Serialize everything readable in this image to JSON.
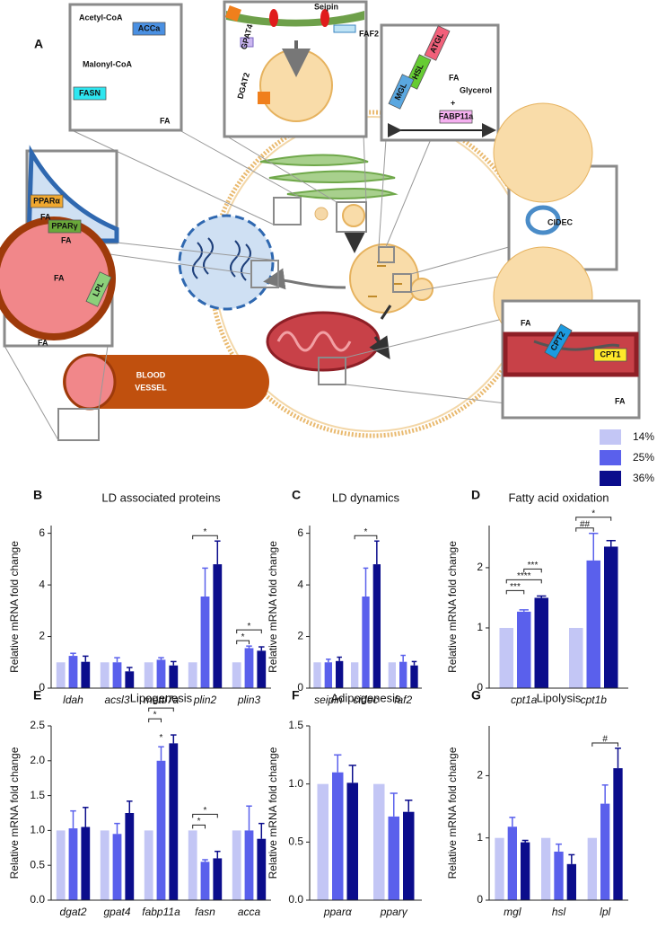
{
  "panel_a": {
    "label": "A",
    "labels": [
      "Acetyl-CoA",
      "ACCa",
      "Malonyl-CoA",
      "FASN",
      "FA",
      "Seipin",
      "FAF2",
      "GPAT4",
      "DGAT2",
      "ATGL",
      "HSL",
      "MGL",
      "FA",
      "Glycerol",
      "+",
      "FABP11a",
      "PPARα",
      "FA",
      "PPARγ",
      "FA",
      "CIDEC",
      "FA",
      "LPL",
      "FA",
      "BLOOD",
      "VESSEL",
      "FA",
      "CPT2",
      "CPT1",
      "FA"
    ]
  },
  "legend": [
    {
      "name": "14%",
      "color": "#c3c6f5"
    },
    {
      "name": "25%",
      "color": "#5a60ec"
    },
    {
      "name": "36%",
      "color": "#0b0d8c"
    }
  ],
  "chart_data": [
    {
      "type": "bar",
      "label": "B",
      "title": "LD associated proteins",
      "y_label": "Relative mRNA fold change",
      "categories": [
        "ldah",
        "acsl3",
        "mettl7a",
        "plin2",
        "plin3"
      ],
      "series": [
        {
          "values": [
            1,
            1,
            1,
            1,
            1
          ]
        },
        {
          "values": [
            1.25,
            1.0,
            1.1,
            3.55,
            1.55
          ],
          "errors": [
            0.1,
            0.18,
            0.08,
            1.1,
            0.08
          ]
        },
        {
          "values": [
            1.02,
            0.65,
            0.88,
            4.8,
            1.45
          ],
          "errors": [
            0.22,
            0.15,
            0.15,
            0.9,
            0.15
          ]
        }
      ],
      "ylim": [
        0,
        6.3
      ],
      "yticks": [
        0,
        2,
        4,
        6
      ],
      "annotations": [
        "*",
        "*",
        "*"
      ]
    },
    {
      "type": "bar",
      "label": "C",
      "title": "LD dynamics",
      "y_label": "Relative mRNA fold change",
      "categories": [
        "seipin",
        "cidec",
        "faf2"
      ],
      "series": [
        {
          "values": [
            1,
            1,
            1
          ]
        },
        {
          "values": [
            1.0,
            3.55,
            1.02
          ],
          "errors": [
            0.12,
            1.1,
            0.25
          ]
        },
        {
          "values": [
            1.05,
            4.8,
            0.88
          ],
          "errors": [
            0.15,
            0.9,
            0.15
          ]
        }
      ],
      "ylim": [
        0,
        6.3
      ],
      "yticks": [
        0,
        2,
        4,
        6
      ],
      "annotations": [
        "*"
      ]
    },
    {
      "type": "bar",
      "label": "D",
      "title": "Fatty acid oxidation",
      "y_label": "Relative mRNA fold change",
      "categories": [
        "cpt1a",
        "cpt1b"
      ],
      "series": [
        {
          "values": [
            1,
            1
          ]
        },
        {
          "values": [
            1.27,
            2.12
          ],
          "errors": [
            0.03,
            0.45
          ]
        },
        {
          "values": [
            1.5,
            2.35
          ],
          "errors": [
            0.03,
            0.1
          ]
        }
      ],
      "ylim": [
        0,
        2.7
      ],
      "yticks": [
        0,
        1,
        2
      ],
      "annotations": [
        "***",
        "****",
        "***",
        "##",
        "*"
      ]
    },
    {
      "type": "bar",
      "label": "E",
      "title": "Lipogenesis",
      "y_label": "Relative mRNA fold change",
      "categories": [
        "dgat2",
        "gpat4",
        "fabp11a",
        "fasn",
        "acca"
      ],
      "series": [
        {
          "values": [
            1,
            1,
            1,
            1,
            1
          ]
        },
        {
          "values": [
            1.03,
            0.95,
            2.0,
            0.55,
            1.0
          ],
          "errors": [
            0.25,
            0.15,
            0.2,
            0.03,
            0.35
          ]
        },
        {
          "values": [
            1.05,
            1.25,
            2.25,
            0.6,
            0.88
          ],
          "errors": [
            0.28,
            0.17,
            0.12,
            0.1,
            0.22
          ]
        }
      ],
      "ylim": [
        0,
        2.5
      ],
      "yticks": [
        {
          "value": 0,
          "label": "0.0"
        },
        0.5,
        {
          "value": 1,
          "label": "1.0"
        },
        1.5,
        {
          "value": 2,
          "label": "2.0"
        },
        2.5
      ],
      "annotations": [
        "*",
        "*",
        "**",
        "*",
        "*"
      ]
    },
    {
      "type": "bar",
      "label": "F",
      "title": "Adipogenesis",
      "y_label": "Relative mRNA fold change",
      "categories": [
        "pparα",
        "pparγ"
      ],
      "series": [
        {
          "values": [
            1,
            1
          ]
        },
        {
          "values": [
            1.1,
            0.72
          ],
          "errors": [
            0.15,
            0.2
          ]
        },
        {
          "values": [
            1.01,
            0.76
          ],
          "errors": [
            0.15,
            0.1
          ]
        }
      ],
      "ylim": [
        0,
        1.5
      ],
      "yticks": [
        {
          "value": 0,
          "label": "0.0"
        },
        0.5,
        {
          "value": 1,
          "label": "1.0"
        },
        1.5
      ],
      "annotations": []
    },
    {
      "type": "bar",
      "label": "G",
      "title": "Lipolysis",
      "y_label": "Relative mRNA fold change",
      "categories": [
        "mgl",
        "hsl",
        "lpl"
      ],
      "series": [
        {
          "values": [
            1,
            1,
            1
          ]
        },
        {
          "values": [
            1.18,
            0.78,
            1.55
          ],
          "errors": [
            0.15,
            0.12,
            0.3
          ]
        },
        {
          "values": [
            0.93,
            0.58,
            2.12
          ],
          "errors": [
            0.03,
            0.15,
            0.32
          ]
        }
      ],
      "ylim": [
        0,
        2.8
      ],
      "yticks": [
        0,
        1,
        2
      ],
      "annotations": [
        "#"
      ]
    }
  ]
}
